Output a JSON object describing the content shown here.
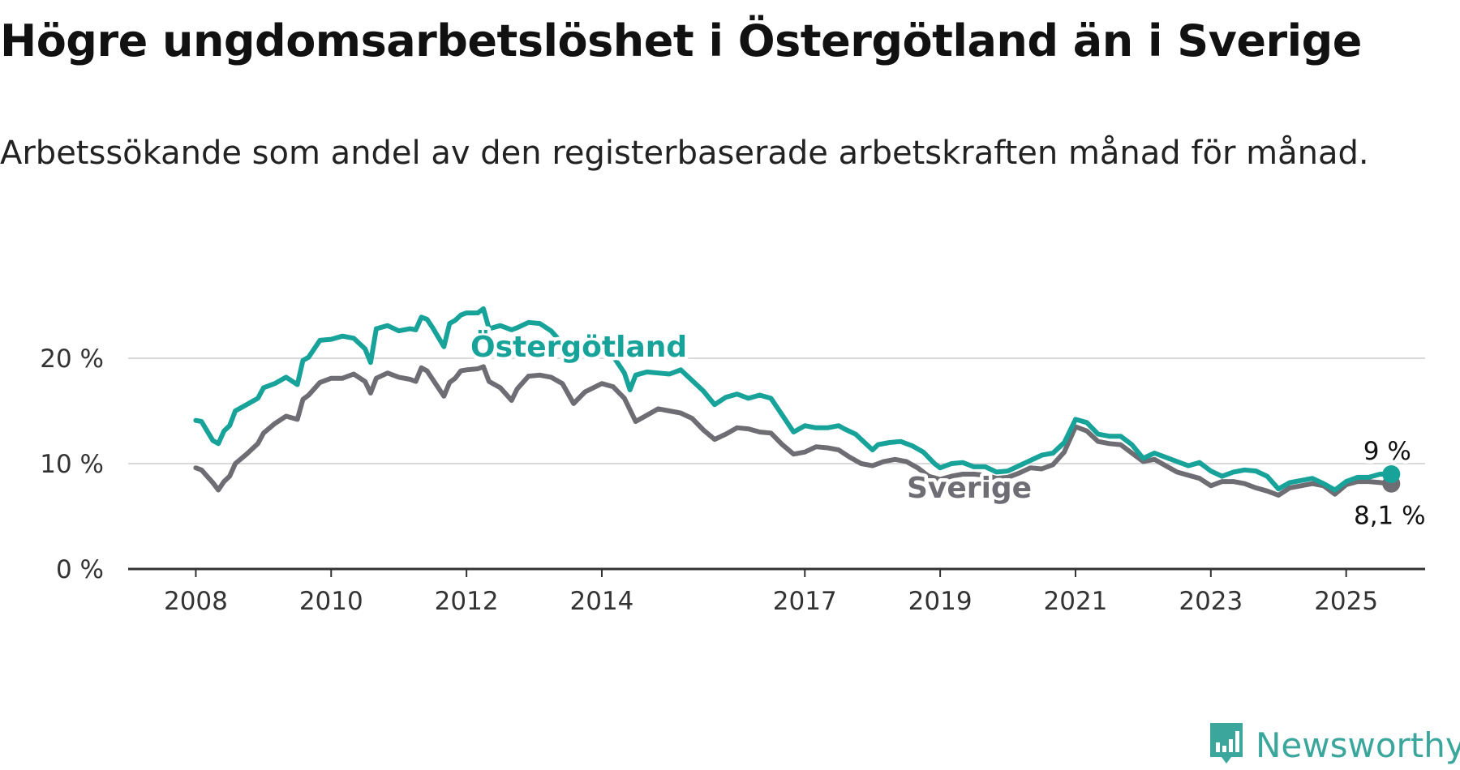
{
  "title": "Högre ungdomsarbetslöshet i Östergötland än i Sverige",
  "subtitle": "Arbetssökande som andel av den registerbaserade arbetskraften månad för månad.",
  "logo": {
    "text": "Newsworthy",
    "icon": "newsworthy-logo-icon",
    "color": "#3aa69c"
  },
  "chart_data": {
    "type": "line",
    "title": "Högre ungdomsarbetslöshet i Östergötland än i Sverige",
    "subtitle": "Arbetssökande som andel av den registerbaserade arbetskraften månad för månad.",
    "y_ticks": [
      "0 %",
      "10 %",
      "20 %"
    ],
    "y_tick_values": [
      0,
      10,
      20
    ],
    "x_ticks": [
      "2008",
      "2010",
      "2012",
      "2014",
      "2017",
      "2019",
      "2021",
      "2023",
      "2025"
    ],
    "ylim": [
      0,
      25
    ],
    "xlim": [
      "2007-01",
      "2026-03"
    ],
    "grid": true,
    "series": [
      {
        "name": "Östergötland",
        "color": "#17a39a",
        "end_label": "9 %",
        "points": [
          [
            "2008-01",
            14.1
          ],
          [
            "2008-02",
            14.0
          ],
          [
            "2008-04",
            12.2
          ],
          [
            "2008-05",
            11.9
          ],
          [
            "2008-06",
            13.1
          ],
          [
            "2008-07",
            13.6
          ],
          [
            "2008-08",
            15.0
          ],
          [
            "2008-10",
            15.6
          ],
          [
            "2008-12",
            16.2
          ],
          [
            "2009-01",
            17.2
          ],
          [
            "2009-03",
            17.6
          ],
          [
            "2009-05",
            18.2
          ],
          [
            "2009-07",
            17.5
          ],
          [
            "2009-08",
            19.8
          ],
          [
            "2009-09",
            20.1
          ],
          [
            "2009-11",
            21.7
          ],
          [
            "2010-01",
            21.8
          ],
          [
            "2010-03",
            22.1
          ],
          [
            "2010-05",
            21.9
          ],
          [
            "2010-07",
            20.9
          ],
          [
            "2010-08",
            19.6
          ],
          [
            "2010-09",
            22.8
          ],
          [
            "2010-11",
            23.1
          ],
          [
            "2011-01",
            22.6
          ],
          [
            "2011-03",
            22.8
          ],
          [
            "2011-04",
            22.7
          ],
          [
            "2011-05",
            23.9
          ],
          [
            "2011-06",
            23.7
          ],
          [
            "2011-07",
            22.9
          ],
          [
            "2011-09",
            21.1
          ],
          [
            "2011-10",
            23.3
          ],
          [
            "2011-11",
            23.6
          ],
          [
            "2011-12",
            24.1
          ],
          [
            "2012-01",
            24.3
          ],
          [
            "2012-03",
            24.3
          ],
          [
            "2012-04",
            24.7
          ],
          [
            "2012-05",
            22.8
          ],
          [
            "2012-07",
            23.1
          ],
          [
            "2012-09",
            22.7
          ],
          [
            "2012-10",
            22.9
          ],
          [
            "2012-12",
            23.4
          ],
          [
            "2013-02",
            23.3
          ],
          [
            "2013-04",
            22.6
          ],
          [
            "2013-06",
            21.4
          ],
          [
            "2013-08",
            19.8
          ],
          [
            "2013-10",
            21.2
          ],
          [
            "2014-01",
            21.3
          ],
          [
            "2014-03",
            20.2
          ],
          [
            "2014-05",
            18.6
          ],
          [
            "2014-06",
            17.0
          ],
          [
            "2014-07",
            18.4
          ],
          [
            "2014-09",
            18.7
          ],
          [
            "2014-11",
            18.6
          ],
          [
            "2015-01",
            18.5
          ],
          [
            "2015-03",
            18.9
          ],
          [
            "2015-05",
            17.9
          ],
          [
            "2015-07",
            16.9
          ],
          [
            "2015-09",
            15.6
          ],
          [
            "2015-11",
            16.3
          ],
          [
            "2016-01",
            16.6
          ],
          [
            "2016-03",
            16.2
          ],
          [
            "2016-05",
            16.5
          ],
          [
            "2016-07",
            16.2
          ],
          [
            "2016-09",
            14.6
          ],
          [
            "2016-11",
            13.0
          ],
          [
            "2017-01",
            13.6
          ],
          [
            "2017-03",
            13.4
          ],
          [
            "2017-05",
            13.4
          ],
          [
            "2017-07",
            13.6
          ],
          [
            "2017-08",
            13.3
          ],
          [
            "2017-10",
            12.8
          ],
          [
            "2017-12",
            11.8
          ],
          [
            "2018-01",
            11.3
          ],
          [
            "2018-02",
            11.8
          ],
          [
            "2018-04",
            12.0
          ],
          [
            "2018-06",
            12.1
          ],
          [
            "2018-08",
            11.7
          ],
          [
            "2018-10",
            11.1
          ],
          [
            "2018-12",
            10.0
          ],
          [
            "2019-01",
            9.6
          ],
          [
            "2019-03",
            10.0
          ],
          [
            "2019-05",
            10.1
          ],
          [
            "2019-07",
            9.7
          ],
          [
            "2019-09",
            9.7
          ],
          [
            "2019-11",
            9.2
          ],
          [
            "2020-01",
            9.3
          ],
          [
            "2020-03",
            9.8
          ],
          [
            "2020-05",
            10.3
          ],
          [
            "2020-07",
            10.8
          ],
          [
            "2020-09",
            11.0
          ],
          [
            "2020-11",
            12.0
          ],
          [
            "2021-01",
            14.2
          ],
          [
            "2021-03",
            13.9
          ],
          [
            "2021-05",
            12.8
          ],
          [
            "2021-07",
            12.6
          ],
          [
            "2021-09",
            12.6
          ],
          [
            "2021-11",
            11.8
          ],
          [
            "2022-01",
            10.5
          ],
          [
            "2022-03",
            11.0
          ],
          [
            "2022-05",
            10.6
          ],
          [
            "2022-07",
            10.2
          ],
          [
            "2022-09",
            9.8
          ],
          [
            "2022-11",
            10.1
          ],
          [
            "2023-01",
            9.3
          ],
          [
            "2023-03",
            8.8
          ],
          [
            "2023-05",
            9.2
          ],
          [
            "2023-07",
            9.4
          ],
          [
            "2023-09",
            9.3
          ],
          [
            "2023-11",
            8.8
          ],
          [
            "2024-01",
            7.6
          ],
          [
            "2024-03",
            8.2
          ],
          [
            "2024-05",
            8.4
          ],
          [
            "2024-07",
            8.6
          ],
          [
            "2024-09",
            8.1
          ],
          [
            "2024-11",
            7.5
          ],
          [
            "2025-01",
            8.3
          ],
          [
            "2025-03",
            8.7
          ],
          [
            "2025-05",
            8.7
          ],
          [
            "2025-07",
            9.0
          ],
          [
            "2025-09",
            9.0
          ]
        ]
      },
      {
        "name": "Sverige",
        "color": "#6e6d73",
        "end_label": "8,1 %",
        "points": [
          [
            "2008-01",
            9.6
          ],
          [
            "2008-02",
            9.4
          ],
          [
            "2008-04",
            8.2
          ],
          [
            "2008-05",
            7.5
          ],
          [
            "2008-06",
            8.3
          ],
          [
            "2008-07",
            8.8
          ],
          [
            "2008-08",
            10.0
          ],
          [
            "2008-10",
            10.9
          ],
          [
            "2008-12",
            11.9
          ],
          [
            "2009-01",
            12.9
          ],
          [
            "2009-03",
            13.8
          ],
          [
            "2009-05",
            14.5
          ],
          [
            "2009-07",
            14.2
          ],
          [
            "2009-08",
            16.1
          ],
          [
            "2009-09",
            16.5
          ],
          [
            "2009-11",
            17.7
          ],
          [
            "2010-01",
            18.1
          ],
          [
            "2010-03",
            18.1
          ],
          [
            "2010-05",
            18.5
          ],
          [
            "2010-07",
            17.8
          ],
          [
            "2010-08",
            16.7
          ],
          [
            "2010-09",
            18.1
          ],
          [
            "2010-11",
            18.6
          ],
          [
            "2011-01",
            18.2
          ],
          [
            "2011-03",
            18.0
          ],
          [
            "2011-04",
            17.8
          ],
          [
            "2011-05",
            19.1
          ],
          [
            "2011-06",
            18.8
          ],
          [
            "2011-07",
            18.0
          ],
          [
            "2011-09",
            16.4
          ],
          [
            "2011-10",
            17.7
          ],
          [
            "2011-11",
            18.1
          ],
          [
            "2011-12",
            18.8
          ],
          [
            "2012-01",
            18.9
          ],
          [
            "2012-03",
            19.0
          ],
          [
            "2012-04",
            19.2
          ],
          [
            "2012-05",
            17.8
          ],
          [
            "2012-07",
            17.2
          ],
          [
            "2012-09",
            16.0
          ],
          [
            "2012-10",
            17.1
          ],
          [
            "2012-12",
            18.3
          ],
          [
            "2013-02",
            18.4
          ],
          [
            "2013-04",
            18.2
          ],
          [
            "2013-06",
            17.6
          ],
          [
            "2013-08",
            15.7
          ],
          [
            "2013-10",
            16.8
          ],
          [
            "2014-01",
            17.6
          ],
          [
            "2014-03",
            17.3
          ],
          [
            "2014-05",
            16.2
          ],
          [
            "2014-07",
            14.0
          ],
          [
            "2014-09",
            14.6
          ],
          [
            "2014-11",
            15.2
          ],
          [
            "2015-01",
            15.0
          ],
          [
            "2015-03",
            14.8
          ],
          [
            "2015-05",
            14.3
          ],
          [
            "2015-07",
            13.2
          ],
          [
            "2015-09",
            12.3
          ],
          [
            "2015-11",
            12.8
          ],
          [
            "2016-01",
            13.4
          ],
          [
            "2016-03",
            13.3
          ],
          [
            "2016-05",
            13.0
          ],
          [
            "2016-07",
            12.9
          ],
          [
            "2016-09",
            11.8
          ],
          [
            "2016-11",
            10.9
          ],
          [
            "2017-01",
            11.1
          ],
          [
            "2017-03",
            11.6
          ],
          [
            "2017-05",
            11.5
          ],
          [
            "2017-07",
            11.3
          ],
          [
            "2017-09",
            10.6
          ],
          [
            "2017-11",
            10.0
          ],
          [
            "2018-01",
            9.8
          ],
          [
            "2018-03",
            10.2
          ],
          [
            "2018-05",
            10.4
          ],
          [
            "2018-07",
            10.2
          ],
          [
            "2018-09",
            9.6
          ],
          [
            "2018-11",
            8.8
          ],
          [
            "2019-01",
            8.5
          ],
          [
            "2019-03",
            8.8
          ],
          [
            "2019-05",
            9.0
          ],
          [
            "2019-07",
            9.0
          ],
          [
            "2019-09",
            8.9
          ],
          [
            "2019-11",
            8.6
          ],
          [
            "2020-01",
            8.7
          ],
          [
            "2020-03",
            9.1
          ],
          [
            "2020-05",
            9.6
          ],
          [
            "2020-07",
            9.5
          ],
          [
            "2020-09",
            9.9
          ],
          [
            "2020-11",
            11.1
          ],
          [
            "2021-01",
            13.5
          ],
          [
            "2021-03",
            13.1
          ],
          [
            "2021-05",
            12.1
          ],
          [
            "2021-07",
            11.9
          ],
          [
            "2021-09",
            11.8
          ],
          [
            "2021-11",
            11.0
          ],
          [
            "2022-01",
            10.2
          ],
          [
            "2022-03",
            10.4
          ],
          [
            "2022-05",
            9.8
          ],
          [
            "2022-07",
            9.2
          ],
          [
            "2022-09",
            8.9
          ],
          [
            "2022-11",
            8.6
          ],
          [
            "2023-01",
            7.9
          ],
          [
            "2023-03",
            8.3
          ],
          [
            "2023-05",
            8.3
          ],
          [
            "2023-07",
            8.1
          ],
          [
            "2023-09",
            7.7
          ],
          [
            "2023-11",
            7.4
          ],
          [
            "2024-01",
            7.0
          ],
          [
            "2024-03",
            7.7
          ],
          [
            "2024-05",
            7.9
          ],
          [
            "2024-07",
            8.1
          ],
          [
            "2024-09",
            7.9
          ],
          [
            "2024-11",
            7.1
          ],
          [
            "2025-01",
            8.0
          ],
          [
            "2025-03",
            8.3
          ],
          [
            "2025-05",
            8.3
          ],
          [
            "2025-07",
            8.2
          ],
          [
            "2025-09",
            8.1
          ]
        ]
      }
    ]
  }
}
